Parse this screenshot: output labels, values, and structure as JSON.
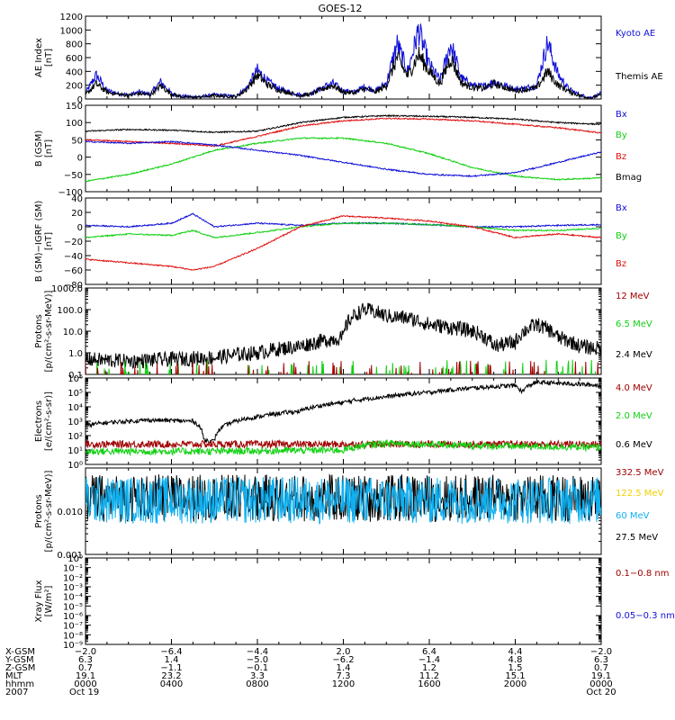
{
  "title": "GOES-12",
  "colors": {
    "black": "#000000",
    "blue": "#1010d8",
    "green": "#10d010",
    "red": "#e01010",
    "darkred": "#a00000",
    "cyan": "#10b0f0",
    "yellow": "#f0d000"
  },
  "chart_data": [
    {
      "type": "line",
      "id": "ae",
      "ylabel": [
        "AE Index",
        "[nT]"
      ],
      "ylim": [
        0,
        1200
      ],
      "yticks": [
        0,
        200,
        400,
        600,
        800,
        1000,
        1200
      ],
      "ytick_labels": [
        "0",
        "200",
        "400",
        "600",
        "800",
        "1000",
        "1200"
      ],
      "legend": [
        {
          "text": "Kyoto AE",
          "color": "#1010d8"
        },
        {
          "text": "Themis AE",
          "color": "#000000"
        }
      ],
      "series": [
        {
          "name": "Kyoto AE",
          "color": "#1010d8",
          "x": [
            0,
            0.5,
            1,
            1.5,
            2,
            2.5,
            3,
            3.5,
            4,
            4.5,
            5,
            5.5,
            6,
            6.5,
            7,
            7.5,
            8,
            8.5,
            9,
            9.5,
            10,
            10.5,
            11,
            11.5,
            12,
            12.5,
            13,
            13.5,
            14,
            14.5,
            15,
            15.5,
            16,
            16.5,
            17,
            17.5,
            18,
            18.5,
            19,
            19.5,
            20,
            20.5,
            21,
            21.5,
            22,
            22.5,
            23,
            23.5,
            24
          ],
          "y": [
            80,
            350,
            120,
            80,
            60,
            100,
            70,
            250,
            80,
            40,
            30,
            40,
            60,
            50,
            40,
            160,
            420,
            250,
            150,
            100,
            60,
            80,
            160,
            230,
            120,
            100,
            180,
            120,
            230,
            800,
            400,
            1000,
            500,
            270,
            800,
            300,
            200,
            180,
            250,
            200,
            140,
            160,
            200,
            820,
            350,
            140,
            60,
            20,
            80
          ]
        },
        {
          "name": "Themis AE",
          "color": "#000000",
          "x": [
            0,
            0.5,
            1,
            1.5,
            2,
            2.5,
            3,
            3.5,
            4,
            4.5,
            5,
            5.5,
            6,
            6.5,
            7,
            7.5,
            8,
            8.5,
            9,
            9.5,
            10,
            10.5,
            11,
            11.5,
            12,
            12.5,
            13,
            13.5,
            14,
            14.5,
            15,
            15.5,
            16,
            16.5,
            17,
            17.5,
            18,
            18.5,
            19,
            19.5,
            20,
            20.5,
            21,
            21.5,
            22,
            22.5,
            23,
            23.5,
            24
          ],
          "y": [
            60,
            220,
            100,
            70,
            50,
            80,
            60,
            190,
            70,
            30,
            25,
            30,
            50,
            40,
            35,
            140,
            350,
            200,
            130,
            90,
            50,
            70,
            140,
            200,
            100,
            90,
            150,
            100,
            190,
            600,
            330,
            650,
            400,
            220,
            600,
            230,
            170,
            150,
            220,
            170,
            120,
            140,
            160,
            400,
            200,
            110,
            50,
            15,
            60
          ]
        }
      ]
    },
    {
      "type": "line",
      "id": "bgsm",
      "ylabel": [
        "B (GSM)",
        "[nT]"
      ],
      "ylim": [
        -100,
        150
      ],
      "yticks": [
        -100,
        -50,
        0,
        50,
        100,
        150
      ],
      "ytick_labels": [
        "−100",
        "−50",
        "0",
        "50",
        "100",
        "150"
      ],
      "legend": [
        {
          "text": "Bx",
          "color": "#1010d8"
        },
        {
          "text": "By",
          "color": "#10d010"
        },
        {
          "text": "Bz",
          "color": "#e01010"
        },
        {
          "text": "Bmag",
          "color": "#000000"
        }
      ],
      "series": [
        {
          "name": "Bmag",
          "color": "#000000",
          "x": [
            0,
            2,
            4,
            6,
            8,
            10,
            12,
            14,
            16,
            18,
            20,
            22,
            24
          ],
          "y": [
            75,
            80,
            78,
            72,
            75,
            100,
            115,
            120,
            118,
            115,
            110,
            100,
            95
          ]
        },
        {
          "name": "Bz",
          "color": "#e01010",
          "x": [
            0,
            2,
            4,
            6,
            8,
            10,
            12,
            14,
            16,
            18,
            20,
            22,
            24
          ],
          "y": [
            50,
            45,
            40,
            32,
            60,
            90,
            105,
            112,
            110,
            105,
            95,
            85,
            70
          ]
        },
        {
          "name": "By",
          "color": "#10d010",
          "x": [
            0,
            2,
            4,
            6,
            8,
            10,
            12,
            14,
            16,
            18,
            20,
            22,
            24
          ],
          "y": [
            -70,
            -50,
            -20,
            20,
            40,
            55,
            55,
            40,
            10,
            -30,
            -55,
            -65,
            -60
          ]
        },
        {
          "name": "Bx",
          "color": "#1010d8",
          "x": [
            0,
            2,
            4,
            6,
            8,
            10,
            12,
            14,
            16,
            18,
            20,
            22,
            24
          ],
          "y": [
            45,
            40,
            45,
            35,
            20,
            5,
            -15,
            -35,
            -50,
            -55,
            -45,
            -15,
            15
          ]
        }
      ]
    },
    {
      "type": "line",
      "id": "bsm_igrf",
      "ylabel": [
        "B (SM)−IGRF (SM)",
        "[nT]"
      ],
      "ylim": [
        -80,
        40
      ],
      "yticks": [
        -80,
        -60,
        -40,
        -20,
        0,
        20,
        40
      ],
      "ytick_labels": [
        "−80",
        "−60",
        "−40",
        "−20",
        "0",
        "20",
        "40"
      ],
      "legend": [
        {
          "text": "Bx",
          "color": "#1010d8"
        },
        {
          "text": "By",
          "color": "#10d010"
        },
        {
          "text": "Bz",
          "color": "#e01010"
        }
      ],
      "series": [
        {
          "name": "Bx",
          "color": "#1010d8",
          "x": [
            0,
            2,
            4,
            5,
            6,
            8,
            10,
            12,
            14,
            16,
            18,
            20,
            22,
            24
          ],
          "y": [
            2,
            0,
            5,
            18,
            0,
            5,
            2,
            5,
            5,
            3,
            0,
            0,
            2,
            3
          ]
        },
        {
          "name": "By",
          "color": "#10d010",
          "x": [
            0,
            2,
            4,
            5,
            6,
            8,
            10,
            12,
            14,
            16,
            18,
            20,
            22,
            24
          ],
          "y": [
            -15,
            -10,
            -12,
            -5,
            -15,
            -8,
            0,
            5,
            5,
            3,
            0,
            -5,
            -5,
            -2
          ]
        },
        {
          "name": "Bz",
          "color": "#e01010",
          "x": [
            0,
            2,
            4,
            5,
            6,
            8,
            10,
            12,
            14,
            16,
            18,
            20,
            22,
            24
          ],
          "y": [
            -45,
            -50,
            -55,
            -60,
            -55,
            -30,
            0,
            15,
            12,
            8,
            0,
            -15,
            -10,
            -15
          ]
        }
      ]
    },
    {
      "type": "line",
      "id": "protons_low",
      "ylabel": [
        "Protons",
        "[p/(cm²-s-sr-MeV)]"
      ],
      "yscale": "log",
      "ylim": [
        0.1,
        1000
      ],
      "yticks": [
        0.1,
        1,
        10,
        100,
        1000
      ],
      "ytick_labels": [
        "0.1",
        "1.0",
        "10.0",
        "100.0",
        "1000.0"
      ],
      "legend": [
        {
          "text": "12 MeV",
          "color": "#a00000"
        },
        {
          "text": "6.5 MeV",
          "color": "#10d010"
        },
        {
          "text": "2.4 MeV",
          "color": "#000000"
        }
      ],
      "series": [
        {
          "name": "2.4 MeV",
          "color": "#000000",
          "x": [
            0,
            2,
            4,
            6,
            7,
            8,
            10,
            12,
            13,
            14,
            15,
            16,
            17,
            18,
            19,
            20,
            21,
            22,
            23,
            24
          ],
          "y": [
            0.5,
            0.4,
            0.5,
            0.6,
            0.8,
            1,
            2,
            5,
            100,
            50,
            40,
            20,
            15,
            10,
            2,
            3,
            20,
            5,
            2,
            1.5
          ]
        },
        {
          "name": "6.5 MeV",
          "color": "#10d010",
          "x": [
            0,
            6,
            12,
            18,
            24
          ],
          "y": [
            0.12,
            0.12,
            0.12,
            0.12,
            0.12
          ]
        },
        {
          "name": "12 MeV",
          "color": "#a00000",
          "x": [
            0,
            6,
            12,
            18,
            24
          ],
          "y": [
            0.11,
            0.11,
            0.11,
            0.11,
            0.11
          ]
        }
      ]
    },
    {
      "type": "line",
      "id": "electrons",
      "ylabel": [
        "Electrons",
        "[e/(cm²-s-sr)]"
      ],
      "yscale": "log",
      "ylim": [
        1,
        1000000
      ],
      "yticks": [
        1,
        10,
        100,
        1000,
        10000,
        100000,
        1000000
      ],
      "ytick_labels": [
        "10⁰",
        "10¹",
        "10²",
        "10³",
        "10⁴",
        "10⁵",
        "10⁶"
      ],
      "legend": [
        {
          "text": "4.0 MeV",
          "color": "#a00000"
        },
        {
          "text": "2.0 MeV",
          "color": "#10d010"
        },
        {
          "text": "0.6 MeV",
          "color": "#000000"
        }
      ],
      "series": [
        {
          "name": "0.6 MeV",
          "color": "#000000",
          "x": [
            0,
            1,
            3,
            5,
            5.5,
            6,
            6.5,
            8,
            10,
            12,
            14,
            16,
            18,
            20,
            20.3,
            21,
            24
          ],
          "y": [
            500,
            800,
            1200,
            1000,
            50,
            40,
            500,
            2000,
            5000,
            20000,
            50000,
            100000,
            200000,
            300000,
            100000,
            500000,
            300000
          ]
        },
        {
          "name": "4.0 MeV",
          "color": "#a00000",
          "x": [
            0,
            6,
            12,
            18,
            24
          ],
          "y": [
            25,
            25,
            25,
            25,
            25
          ]
        },
        {
          "name": "2.0 MeV",
          "color": "#10d010",
          "x": [
            0,
            6,
            12,
            14,
            18,
            24
          ],
          "y": [
            8,
            8,
            10,
            30,
            20,
            15
          ]
        }
      ]
    },
    {
      "type": "line",
      "id": "protons_high",
      "ylabel": [
        "Protons",
        "[p/(cm²-s-sr-MeV)]"
      ],
      "yscale": "log",
      "ylim": [
        0.001,
        0.1
      ],
      "yticks": [
        0.001,
        0.01
      ],
      "ytick_labels": [
        "0.001",
        "0.010"
      ],
      "legend": [
        {
          "text": "332.5 MeV",
          "color": "#a00000"
        },
        {
          "text": "122.5 MeV",
          "color": "#f0d000"
        },
        {
          "text": "60 MeV",
          "color": "#10b0f0"
        },
        {
          "text": "27.5 MeV",
          "color": "#000000"
        }
      ],
      "series": [
        {
          "name": "27.5 MeV",
          "color": "#000000",
          "x": [
            0,
            24
          ],
          "y": [
            0.02,
            0.02
          ]
        },
        {
          "name": "60 MeV",
          "color": "#10b0f0",
          "x": [
            0,
            24
          ],
          "y": [
            0.018,
            0.018
          ]
        }
      ]
    },
    {
      "type": "line",
      "id": "xray",
      "ylabel": [
        "Xray Flux",
        "[W/m²]"
      ],
      "yscale": "log",
      "ylim": [
        1e-09,
        1
      ],
      "yticks": [
        1e-09,
        1e-08,
        1e-07,
        1e-06,
        1e-05,
        0.0001,
        0.001,
        0.01,
        0.1,
        1
      ],
      "ytick_labels": [
        "10⁻⁹",
        "10⁻⁸",
        "10⁻⁷",
        "10⁻⁶",
        "10⁻⁵",
        "10⁻⁴",
        "10⁻³",
        "10⁻²",
        "10⁻¹",
        "10⁰"
      ],
      "legend": [
        {
          "text": "0.1−0.8 nm",
          "color": "#a00000"
        },
        {
          "text": "0.05−0.3 nm",
          "color": "#1010d8"
        }
      ],
      "series": []
    }
  ],
  "xaxis": {
    "range": [
      0,
      24
    ],
    "rows": [
      {
        "label": "X-GSM",
        "values": [
          "−2.0",
          "−6.4",
          "−4.4",
          "2.0",
          "6.4",
          "4.4",
          "−2.0"
        ]
      },
      {
        "label": "Y-GSM",
        "values": [
          "6.3",
          "1.4",
          "−5.0",
          "−6.2",
          "−1.4",
          "4.8",
          "6.3"
        ]
      },
      {
        "label": "Z-GSM",
        "values": [
          "0.7",
          "−1.1",
          "−0.1",
          "1.4",
          "1.2",
          "1.5",
          "0.7"
        ]
      },
      {
        "label": "MLT",
        "values": [
          "19.1",
          "23.2",
          "3.3",
          "7.3",
          "11.2",
          "15.1",
          "19.1"
        ]
      },
      {
        "label": "hhmm",
        "values": [
          "0000",
          "0400",
          "0800",
          "1200",
          "1600",
          "2000",
          "0000"
        ]
      },
      {
        "label": "2007",
        "values": [
          "Oct 19",
          "",
          "",
          "",
          "",
          "",
          "Oct 20"
        ]
      }
    ]
  }
}
